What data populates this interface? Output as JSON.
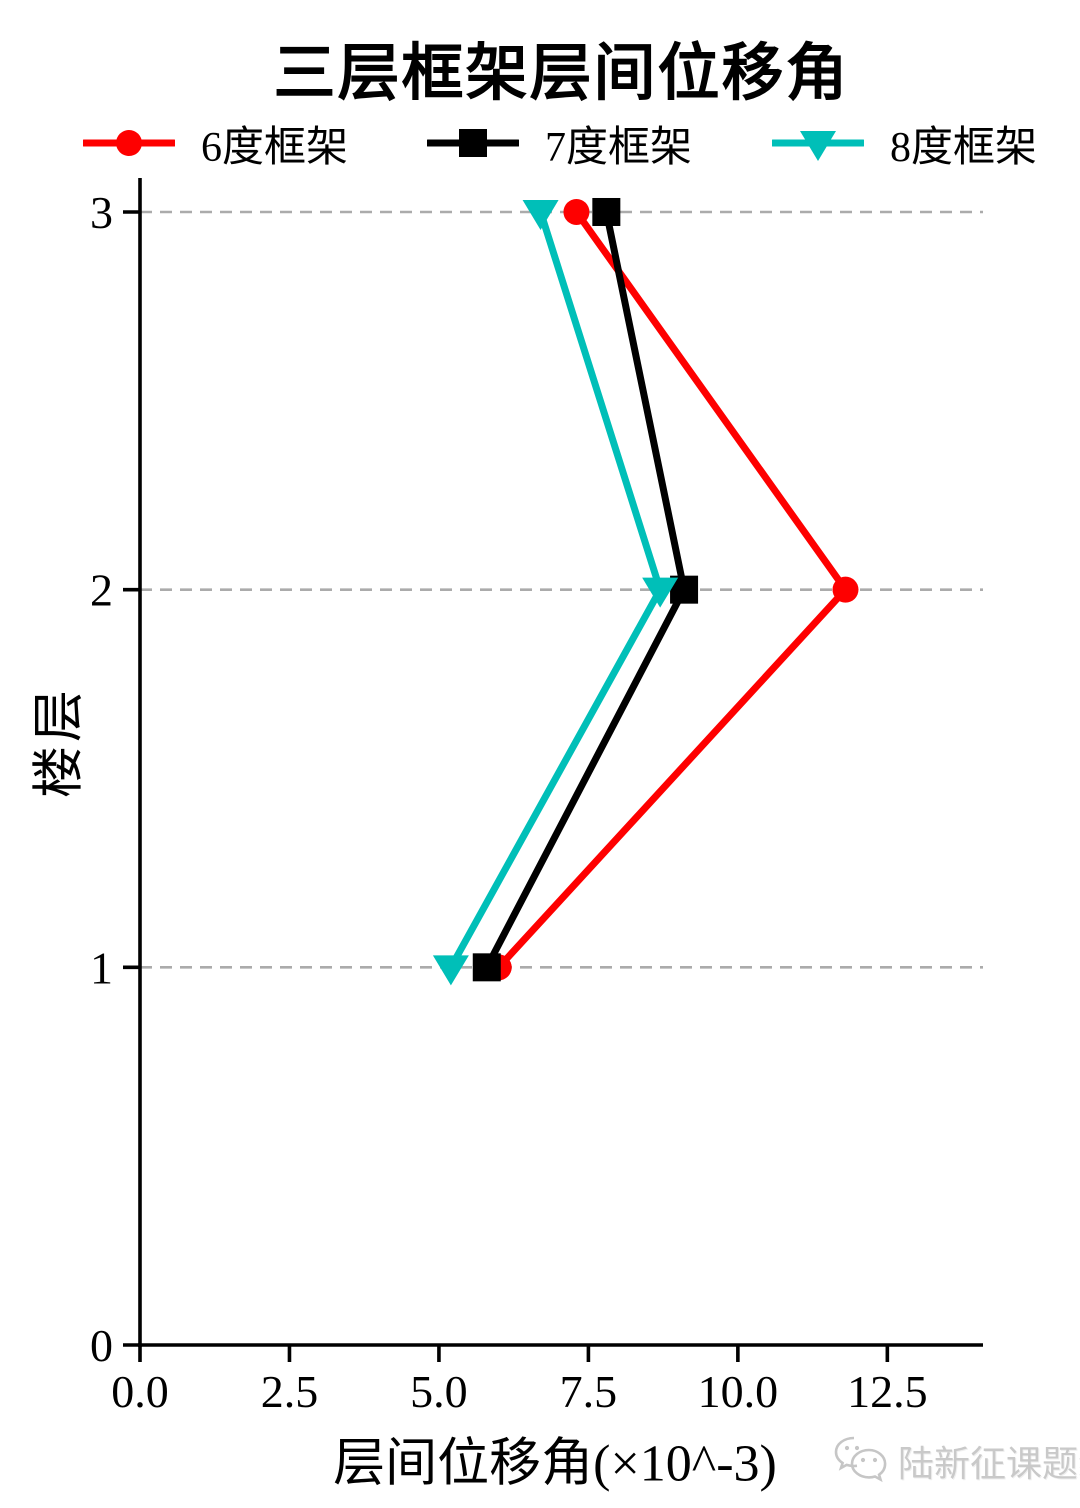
{
  "chart_data": {
    "type": "line",
    "title": "三层框架层间位移角",
    "xlabel": "层间位移角(×10^-3)",
    "ylabel": "楼层",
    "xlim": [
      0,
      14.1
    ],
    "ylim": [
      0,
      3.09
    ],
    "legend_position": "top",
    "grid": {
      "orientation": "horizontal",
      "at": [
        1,
        2,
        3
      ],
      "style": "dashed",
      "color": "#ababab"
    },
    "x_ticks": [
      {
        "value": 0,
        "label": "0.0"
      },
      {
        "value": 2.5,
        "label": "2.5"
      },
      {
        "value": 5,
        "label": "5.0"
      },
      {
        "value": 7.5,
        "label": "7.5"
      },
      {
        "value": 10,
        "label": "10.0"
      },
      {
        "value": 12.5,
        "label": "12.5"
      }
    ],
    "y_ticks": [
      {
        "value": 0,
        "label": "0"
      },
      {
        "value": 1,
        "label": "1"
      },
      {
        "value": 2,
        "label": "2"
      },
      {
        "value": 3,
        "label": "3"
      }
    ],
    "series": [
      {
        "name": "6度框架",
        "color": "#fe0000",
        "marker": "circle",
        "points": [
          {
            "x": 6.0,
            "y": 1
          },
          {
            "x": 11.8,
            "y": 2
          },
          {
            "x": 7.3,
            "y": 3
          }
        ]
      },
      {
        "name": "7度框架",
        "color": "#000000",
        "marker": "square",
        "points": [
          {
            "x": 5.8,
            "y": 1
          },
          {
            "x": 9.1,
            "y": 2
          },
          {
            "x": 7.8,
            "y": 3
          }
        ]
      },
      {
        "name": "8度框架",
        "color": "#00bfb8",
        "marker": "triangle-down",
        "points": [
          {
            "x": 5.2,
            "y": 1
          },
          {
            "x": 8.7,
            "y": 2
          },
          {
            "x": 6.7,
            "y": 3
          }
        ]
      }
    ],
    "axis_color": "#000000"
  },
  "watermark": {
    "icon": "wechat-icon",
    "text": "陆新征课题组",
    "color": "#c9c9c9"
  }
}
